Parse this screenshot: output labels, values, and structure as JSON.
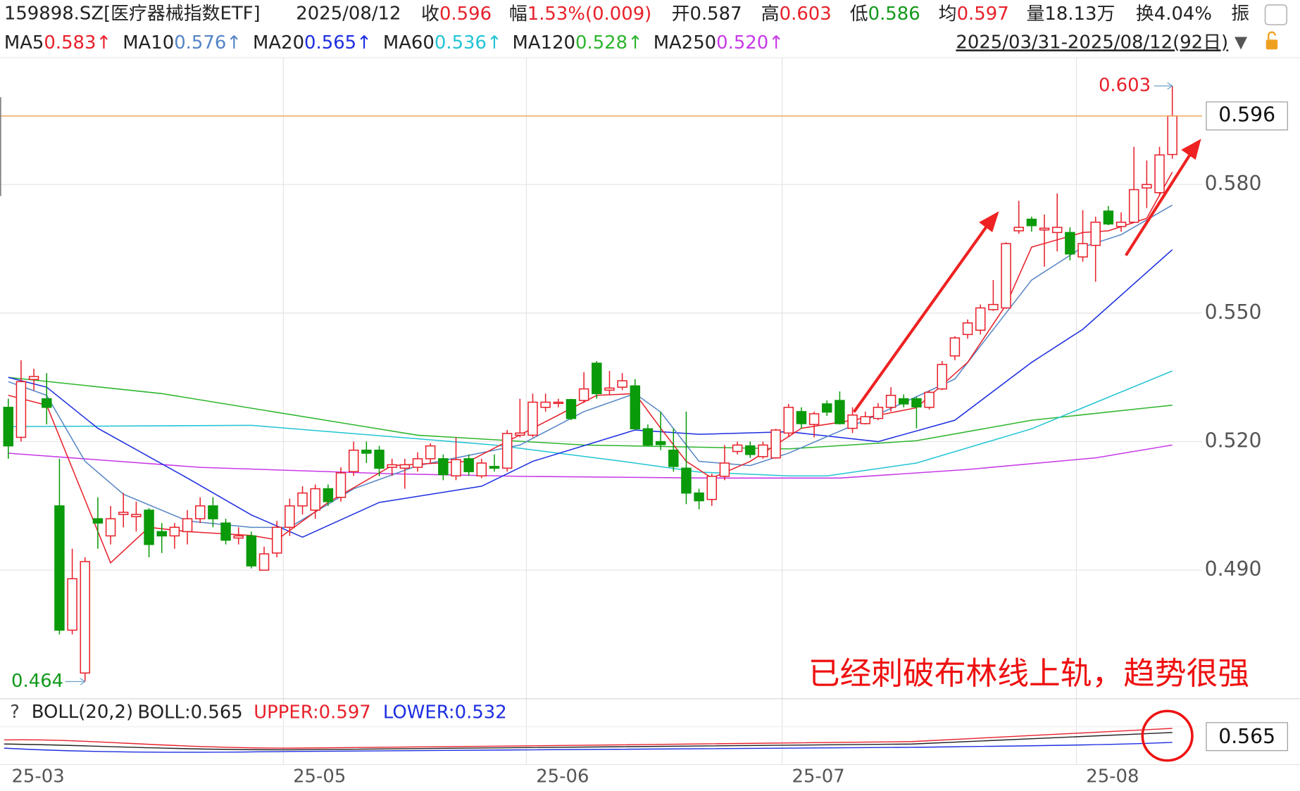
{
  "quote": {
    "code": "159898.SZ[医疗器械指数ETF]",
    "date": "2025/08/12",
    "fields": [
      {
        "label": "收",
        "value": "0.596",
        "color": "#e8202a"
      },
      {
        "label": "幅",
        "value": "1.53%(0.009)",
        "color": "#e8202a"
      },
      {
        "label": "开",
        "value": "0.587",
        "color": "#222222"
      },
      {
        "label": "高",
        "value": "0.603",
        "color": "#e8202a"
      },
      {
        "label": "低",
        "value": "0.586",
        "color": "#11991a"
      },
      {
        "label": "均",
        "value": "0.597",
        "color": "#e8202a"
      },
      {
        "label": "量",
        "value": "18.13万",
        "color": "#222222"
      },
      {
        "label": "换",
        "value": "4.04%",
        "color": "#222222"
      }
    ],
    "cut_label": "振",
    "range": "2025/03/31-2025/08/12(92日)",
    "range_toggle": "▼"
  },
  "chart_data": {
    "type": "candlestick",
    "annotation": "已经刺破布林线上轨，趋势很强",
    "up_color": "#e8202a",
    "down_color": "#0a9a0a",
    "last_price_color": "#f0a050",
    "ylim": [
      0.46,
      0.6096
    ],
    "yticks": [
      {
        "value": 0.49,
        "label": "0.490"
      },
      {
        "value": 0.52,
        "label": "0.520"
      },
      {
        "value": 0.55,
        "label": "0.550"
      },
      {
        "value": 0.58,
        "label": "0.580"
      }
    ],
    "grid": true,
    "categories": [
      "25-03",
      null,
      null,
      null,
      null,
      null,
      null,
      null,
      null,
      null,
      null,
      null,
      null,
      null,
      null,
      null,
      null,
      null,
      null,
      null,
      null,
      null,
      "25-05",
      null,
      null,
      null,
      null,
      null,
      null,
      null,
      null,
      null,
      null,
      null,
      null,
      null,
      null,
      null,
      null,
      null,
      null,
      "25-06",
      null,
      null,
      null,
      null,
      null,
      null,
      null,
      null,
      null,
      null,
      null,
      null,
      null,
      null,
      null,
      null,
      null,
      null,
      null,
      "25-07",
      null,
      null,
      null,
      null,
      null,
      null,
      null,
      null,
      null,
      null,
      null,
      null,
      null,
      null,
      null,
      null,
      null,
      null,
      null,
      null,
      null,
      null,
      "25-08",
      null,
      null,
      null,
      null,
      null,
      null,
      null
    ],
    "open": [
      0.528,
      0.521,
      0.5345,
      0.53,
      0.505,
      0.476,
      0.466,
      0.502,
      0.498,
      0.503,
      0.5025,
      0.504,
      0.499,
      0.498,
      0.499,
      0.502,
      0.505,
      0.501,
      0.4975,
      0.498,
      0.49,
      0.494,
      0.5,
      0.505,
      0.504,
      0.509,
      0.507,
      0.513,
      0.518,
      0.518,
      0.514,
      0.5138,
      0.514,
      0.516,
      0.516,
      0.512,
      0.516,
      0.512,
      0.5142,
      0.5138,
      0.5215,
      0.5215,
      0.528,
      0.529,
      0.5298,
      0.5296,
      0.5383,
      0.532,
      0.5327,
      0.533,
      0.523,
      0.52,
      0.518,
      0.5138,
      0.508,
      0.5065,
      0.5119,
      0.5177,
      0.519,
      0.5165,
      0.5162,
      0.522,
      0.527,
      0.524,
      0.5288,
      0.5296,
      0.5231,
      0.5242,
      0.5254,
      0.528,
      0.53,
      0.53,
      0.528,
      0.5323,
      0.54,
      0.545,
      0.546,
      0.5508,
      0.5512,
      0.5692,
      0.5719,
      0.5694,
      0.5688,
      0.5688,
      0.5631,
      0.5658,
      0.5738,
      0.5702,
      0.5712,
      0.5792,
      0.5781,
      0.587
    ],
    "high": [
      0.53,
      0.539,
      0.537,
      0.536,
      0.516,
      0.495,
      0.493,
      0.507,
      0.505,
      0.508,
      0.506,
      0.5045,
      0.501,
      0.501,
      0.504,
      0.507,
      0.507,
      0.502,
      0.5,
      0.499,
      0.4955,
      0.5015,
      0.5067,
      0.5096,
      0.51,
      0.51,
      0.514,
      0.52,
      0.52,
      0.519,
      0.516,
      0.516,
      0.5175,
      0.5196,
      0.517,
      0.521,
      0.517,
      0.516,
      0.517,
      0.5227,
      0.53,
      0.5312,
      0.5312,
      0.53,
      0.53,
      0.5362,
      0.5388,
      0.5365,
      0.536,
      0.5346,
      0.524,
      0.527,
      0.5231,
      0.527,
      0.509,
      0.5125,
      0.5192,
      0.52,
      0.52,
      0.52,
      0.523,
      0.5288,
      0.528,
      0.527,
      0.5296,
      0.5317,
      0.528,
      0.527,
      0.529,
      0.5327,
      0.531,
      0.5305,
      0.532,
      0.5388,
      0.5446,
      0.5485,
      0.552,
      0.5577,
      0.5665,
      0.5762,
      0.5725,
      0.573,
      0.5779,
      0.57,
      0.574,
      0.5725,
      0.575,
      0.5735,
      0.5888,
      0.5856,
      0.5888,
      0.603
    ],
    "low": [
      0.516,
      0.52,
      0.532,
      0.524,
      0.475,
      0.475,
      0.464,
      0.495,
      0.496,
      0.5,
      0.499,
      0.493,
      0.494,
      0.495,
      0.496,
      0.501,
      0.5,
      0.496,
      0.496,
      0.4904,
      0.49,
      0.493,
      0.498,
      0.503,
      0.502,
      0.505,
      0.506,
      0.512,
      0.515,
      0.5119,
      0.512,
      0.509,
      0.513,
      0.515,
      0.511,
      0.511,
      0.512,
      0.5115,
      0.513,
      0.513,
      0.521,
      0.521,
      0.527,
      0.528,
      0.525,
      0.529,
      0.53,
      0.531,
      0.532,
      0.5227,
      0.519,
      0.518,
      0.513,
      0.5054,
      0.5042,
      0.505,
      0.511,
      0.517,
      0.5162,
      0.516,
      0.516,
      0.521,
      0.523,
      0.521,
      0.526,
      0.524,
      0.522,
      0.524,
      0.525,
      0.527,
      0.528,
      0.5231,
      0.5275,
      0.532,
      0.539,
      0.544,
      0.545,
      0.5505,
      0.551,
      0.5685,
      0.569,
      0.5608,
      0.5644,
      0.5623,
      0.562,
      0.5573,
      0.5705,
      0.569,
      0.571,
      0.5745,
      0.5775,
      0.586
    ],
    "close": [
      0.519,
      0.534,
      0.5352,
      0.528,
      0.476,
      0.488,
      0.492,
      0.501,
      0.502,
      0.5035,
      0.503,
      0.496,
      0.498,
      0.5,
      0.502,
      0.505,
      0.502,
      0.497,
      0.498,
      0.491,
      0.4938,
      0.5,
      0.505,
      0.508,
      0.509,
      0.506,
      0.5127,
      0.518,
      0.5173,
      0.5138,
      0.5146,
      0.5146,
      0.516,
      0.519,
      0.5123,
      0.5158,
      0.513,
      0.515,
      0.5138,
      0.5219,
      0.522,
      0.5292,
      0.5292,
      0.5292,
      0.5254,
      0.5323,
      0.5312,
      0.5325,
      0.5342,
      0.523,
      0.5192,
      0.5193,
      0.5142,
      0.508,
      0.5062,
      0.5119,
      0.515,
      0.5192,
      0.517,
      0.5192,
      0.5227,
      0.528,
      0.5242,
      0.5265,
      0.5269,
      0.5242,
      0.5262,
      0.5258,
      0.528,
      0.5308,
      0.5288,
      0.5281,
      0.5315,
      0.538,
      0.5442,
      0.5477,
      0.5512,
      0.552,
      0.5662,
      0.57,
      0.5704,
      0.5698,
      0.57,
      0.5638,
      0.5662,
      0.5712,
      0.5708,
      0.5712,
      0.5788,
      0.58,
      0.5869,
      0.596
    ],
    "series": [
      {
        "name": "MA5",
        "latest": "0.583",
        "trend": "↑",
        "color": "#e8202a",
        "x": [
          0,
          3,
          8,
          11,
          14,
          19,
          21,
          25,
          30,
          36,
          41,
          46,
          49,
          51,
          53,
          55,
          58,
          62,
          66,
          71,
          75,
          78,
          80,
          84,
          86,
          89,
          91
        ],
        "values": [
          0.5308,
          0.5285,
          0.4917,
          0.5,
          0.499,
          0.4981,
          0.4971,
          0.5058,
          0.5144,
          0.5154,
          0.5231,
          0.5308,
          0.5312,
          0.5231,
          0.5154,
          0.5115,
          0.5154,
          0.5231,
          0.525,
          0.5279,
          0.5385,
          0.5519,
          0.5654,
          0.5688,
          0.5692,
          0.5721,
          0.5829
        ]
      },
      {
        "name": "MA10",
        "latest": "0.576",
        "trend": "↑",
        "color": "#5585c5",
        "x": [
          0,
          3,
          6,
          9,
          14,
          19,
          22,
          27,
          32,
          40,
          45,
          49,
          51,
          54,
          58,
          61,
          67,
          74,
          80,
          84,
          87,
          91
        ],
        "values": [
          0.534,
          0.5308,
          0.5154,
          0.5077,
          0.5015,
          0.5,
          0.5,
          0.509,
          0.5144,
          0.5192,
          0.527,
          0.5312,
          0.5269,
          0.5154,
          0.5144,
          0.5173,
          0.525,
          0.5346,
          0.5577,
          0.5654,
          0.5683,
          0.5752
        ]
      },
      {
        "name": "MA20",
        "latest": "0.565",
        "trend": "↑",
        "color": "#1c2ee0",
        "x": [
          0,
          3,
          7,
          14,
          19,
          23,
          29,
          37,
          41,
          49,
          54,
          61,
          68,
          74,
          80,
          84,
          91
        ],
        "values": [
          0.535,
          0.5327,
          0.5231,
          0.5115,
          0.5029,
          0.4977,
          0.5058,
          0.5096,
          0.5154,
          0.5227,
          0.5217,
          0.5223,
          0.52,
          0.525,
          0.5385,
          0.5462,
          0.5648
        ]
      },
      {
        "name": "MA60",
        "latest": "0.536",
        "trend": "↑",
        "color": "#22c4d4",
        "x": [
          0,
          19,
          38,
          48,
          54,
          61,
          64,
          71,
          80,
          91
        ],
        "values": [
          0.5235,
          0.5238,
          0.5192,
          0.5154,
          0.5129,
          0.512,
          0.512,
          0.515,
          0.523,
          0.5365
        ]
      },
      {
        "name": "MA120",
        "latest": "0.528",
        "trend": "↑",
        "color": "#2db52d",
        "x": [
          0,
          12,
          32,
          45,
          61,
          71,
          80,
          91
        ],
        "values": [
          0.535,
          0.5312,
          0.5215,
          0.5192,
          0.5183,
          0.5202,
          0.525,
          0.5285
        ]
      },
      {
        "name": "MA250",
        "latest": "0.520",
        "trend": "↑",
        "color": "#c83ae8",
        "x": [
          0,
          15,
          30,
          40,
          55,
          65,
          75,
          85,
          91
        ],
        "values": [
          0.5173,
          0.514,
          0.5125,
          0.5119,
          0.5115,
          0.5115,
          0.5135,
          0.5162,
          0.5192
        ]
      }
    ]
  },
  "boll": {
    "help": "?",
    "name": "BOLL(20,2)",
    "items": [
      {
        "label": "BOLL:",
        "value": "0.565",
        "color": "#222222"
      },
      {
        "label": "UPPER:",
        "value": "0.597",
        "color": "#e8202a"
      },
      {
        "label": "LOWER:",
        "value": "0.532",
        "color": "#1c2ee0"
      }
    ]
  }
}
